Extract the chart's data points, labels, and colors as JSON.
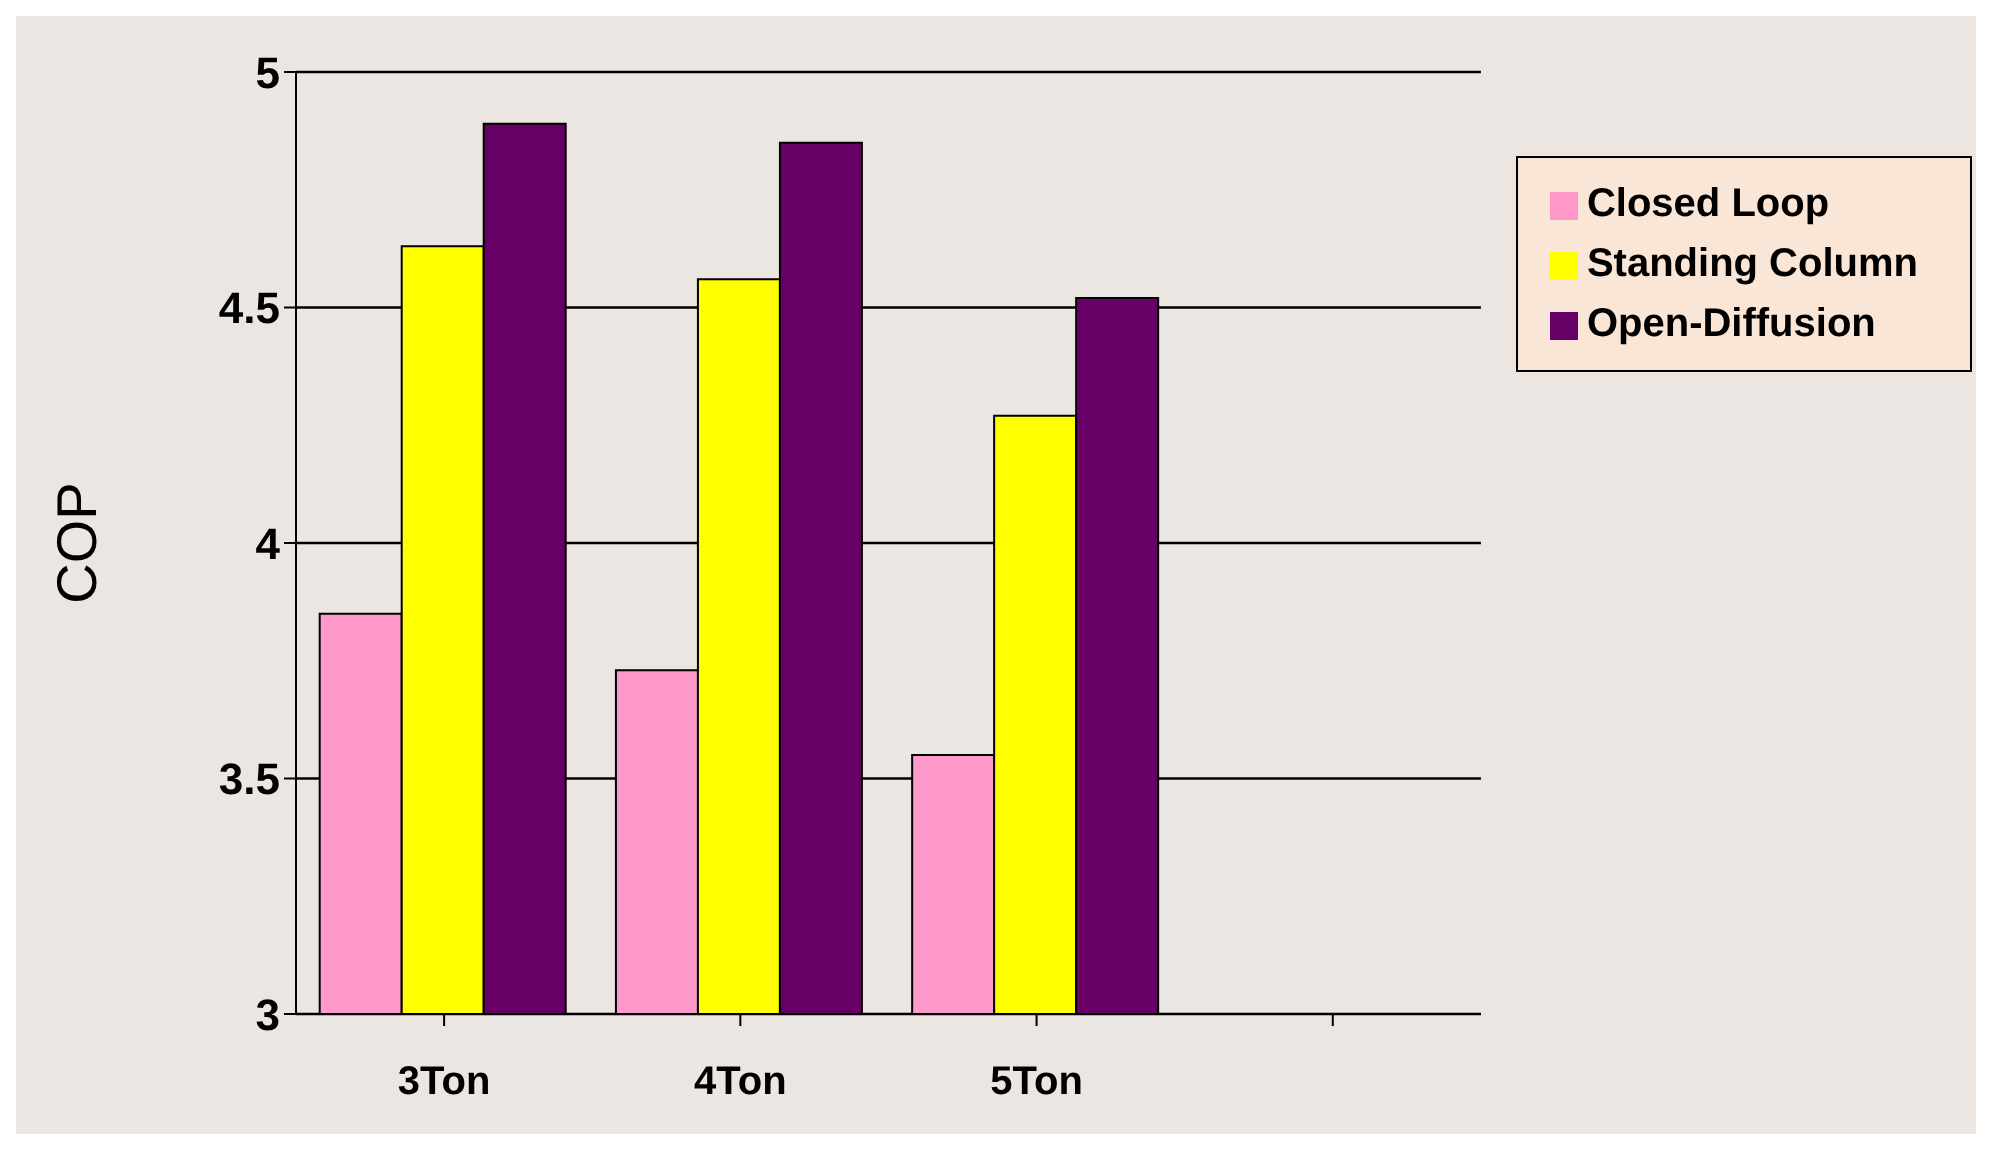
{
  "chart_data": {
    "type": "bar",
    "ylabel": "COP",
    "categories": [
      "3Ton",
      "4Ton",
      "5Ton",
      null
    ],
    "series": [
      {
        "name": "Closed Loop",
        "color": "#ff99cc",
        "values": [
          3.85,
          3.73,
          3.55,
          null
        ]
      },
      {
        "name": "Standing Column",
        "color": "#ffff00",
        "values": [
          4.63,
          4.56,
          4.27,
          null
        ]
      },
      {
        "name": "Open-Diffusion",
        "color": "#660066",
        "values": [
          4.89,
          4.85,
          4.52,
          null
        ]
      }
    ],
    "ylim": [
      3,
      5
    ],
    "yticks": [
      3,
      3.5,
      4,
      4.5,
      5
    ],
    "grid": "y",
    "legend": "right"
  }
}
